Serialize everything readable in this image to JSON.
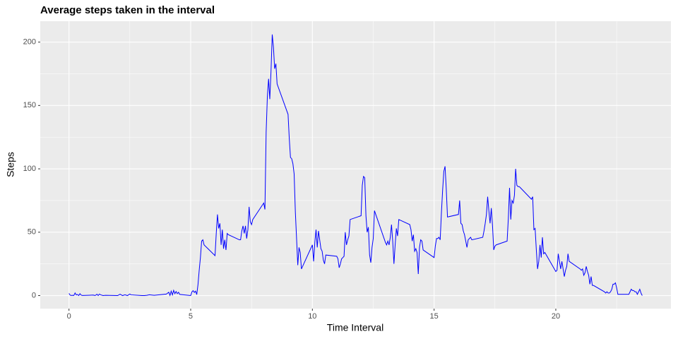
{
  "chart_data": {
    "type": "line",
    "title": "Average steps taken in the interval",
    "x_label": "Time Interval",
    "y_label": "Steps",
    "color": "#0000ff",
    "grid": true,
    "xlim": [
      -1.18,
      24.73
    ],
    "ylim": [
      -10.3,
      216.5
    ],
    "xticks": [
      0,
      5,
      10,
      15,
      20
    ],
    "yticks": [
      0,
      50,
      100,
      150,
      200
    ],
    "x_minor_ticks": [
      2.5,
      7.5,
      12.5,
      17.5,
      22.5
    ],
    "y_minor_ticks": [
      25,
      75,
      125,
      175
    ],
    "x": [
      0,
      0.05,
      0.1,
      0.15,
      0.2,
      0.25,
      0.3,
      0.35,
      0.4,
      0.45,
      0.5,
      0.55,
      1,
      1.05,
      1.1,
      1.15,
      1.2,
      1.25,
      1.3,
      1.4,
      1.5,
      2,
      2.1,
      2.2,
      2.3,
      2.4,
      2.5,
      2.55,
      3,
      3.1,
      3.2,
      3.3,
      3.4,
      3.5,
      4,
      4.1,
      4.15,
      4.2,
      4.25,
      4.3,
      4.35,
      4.4,
      4.45,
      4.5,
      4.55,
      5,
      5.05,
      5.1,
      5.15,
      5.2,
      5.25,
      5.3,
      5.35,
      5.4,
      5.45,
      5.5,
      5.55,
      6,
      6.05,
      6.1,
      6.15,
      6.2,
      6.25,
      6.3,
      6.35,
      6.4,
      6.45,
      6.5,
      6.55,
      7,
      7.05,
      7.1,
      7.15,
      7.2,
      7.25,
      7.3,
      7.35,
      7.4,
      7.45,
      7.5,
      7.55,
      8,
      8.05,
      8.1,
      8.15,
      8.2,
      8.25,
      8.3,
      8.35,
      8.4,
      8.45,
      8.5,
      8.55,
      9,
      9.05,
      9.1,
      9.15,
      9.2,
      9.25,
      9.3,
      9.35,
      9.4,
      9.45,
      9.5,
      9.55,
      10,
      10.05,
      10.1,
      10.15,
      10.2,
      10.25,
      10.3,
      10.35,
      10.4,
      10.45,
      10.5,
      10.55,
      11,
      11.05,
      11.1,
      11.15,
      11.2,
      11.25,
      11.3,
      11.35,
      11.4,
      11.45,
      11.5,
      11.55,
      12,
      12.05,
      12.1,
      12.15,
      12.2,
      12.25,
      12.3,
      12.35,
      12.4,
      12.45,
      12.5,
      12.55,
      13,
      13.05,
      13.1,
      13.15,
      13.2,
      13.25,
      13.3,
      13.35,
      13.4,
      13.45,
      13.5,
      13.55,
      14,
      14.05,
      14.1,
      14.15,
      14.2,
      14.25,
      14.3,
      14.35,
      14.4,
      14.45,
      14.5,
      14.55,
      15,
      15.05,
      15.1,
      15.15,
      15.2,
      15.25,
      15.3,
      15.35,
      15.4,
      15.45,
      15.5,
      15.55,
      16,
      16.05,
      16.1,
      16.15,
      16.2,
      16.25,
      16.3,
      16.35,
      16.4,
      16.45,
      16.5,
      16.55,
      17,
      17.05,
      17.1,
      17.15,
      17.2,
      17.25,
      17.3,
      17.35,
      17.4,
      17.45,
      17.5,
      17.55,
      18,
      18.05,
      18.1,
      18.15,
      18.2,
      18.25,
      18.3,
      18.35,
      18.4,
      18.45,
      18.5,
      18.55,
      19,
      19.05,
      19.1,
      19.15,
      19.2,
      19.25,
      19.3,
      19.35,
      19.4,
      19.45,
      19.5,
      19.55,
      20,
      20.05,
      20.1,
      20.15,
      20.2,
      20.25,
      20.3,
      20.35,
      20.4,
      20.45,
      20.5,
      20.55,
      21,
      21.05,
      21.1,
      21.15,
      21.2,
      21.25,
      21.3,
      21.35,
      21.4,
      21.45,
      21.5,
      21.55,
      22,
      22.05,
      22.1,
      22.15,
      22.2,
      22.25,
      22.3,
      22.35,
      22.4,
      22.45,
      22.5,
      22.55,
      23,
      23.05,
      23.1,
      23.15,
      23.2,
      23.25,
      23.3,
      23.35,
      23.4,
      23.45,
      23.5,
      23.55
    ],
    "values": [
      1.7,
      0.3,
      0.1,
      0.2,
      0.1,
      2.1,
      0.5,
      0.9,
      0,
      1.5,
      0.4,
      0.1,
      0.4,
      0.1,
      0.3,
      1.1,
      0,
      1.2,
      0.6,
      0,
      0.2,
      0,
      1.1,
      0,
      0.6,
      0,
      1.2,
      0.6,
      0,
      0,
      0.2,
      0.6,
      0.4,
      0.2,
      1.2,
      2.6,
      0.1,
      3.5,
      0.5,
      4.1,
      1.5,
      3.2,
      1.5,
      2.6,
      0.9,
      0,
      2.9,
      3.9,
      2.5,
      3.5,
      0.8,
      8.7,
      20,
      30,
      43,
      44,
      40,
      31.5,
      49,
      64,
      53,
      57,
      40,
      52,
      37,
      44,
      36,
      49,
      48,
      44,
      44,
      51,
      55,
      49,
      55,
      45,
      52,
      70,
      58,
      56,
      60,
      73,
      68,
      129,
      157,
      171,
      155,
      177,
      206,
      196,
      179,
      183,
      167,
      143,
      124,
      109,
      108,
      104,
      96,
      66,
      45,
      24,
      38,
      34,
      21,
      40,
      27,
      42,
      52,
      38,
      51,
      44,
      37,
      35,
      28,
      25,
      32,
      31,
      29,
      22,
      25,
      29,
      30,
      31,
      50,
      40,
      44,
      47,
      60,
      63,
      87,
      94,
      93,
      63,
      50,
      54,
      32,
      26,
      38,
      45,
      67,
      42,
      40,
      43,
      40,
      46,
      56,
      43,
      25,
      40,
      53,
      47,
      60,
      56,
      52,
      43,
      48,
      35,
      37,
      34,
      17,
      38,
      44,
      43,
      36,
      30,
      39,
      45,
      45,
      46,
      44,
      65,
      83,
      98,
      102,
      84,
      62,
      64,
      75,
      57,
      56,
      51,
      48,
      43,
      38,
      44,
      45,
      46,
      44,
      46,
      51,
      57,
      64,
      78,
      67,
      57,
      69,
      55,
      36,
      39,
      40,
      43,
      61,
      85,
      60,
      75,
      73,
      79,
      100,
      87,
      86,
      86,
      85,
      76,
      78,
      52,
      53,
      36,
      21,
      27,
      40,
      30,
      46,
      33,
      34,
      19,
      20,
      33,
      27,
      21,
      27,
      21,
      15,
      20,
      23,
      33,
      27,
      21,
      20,
      21,
      16,
      18,
      23,
      19,
      16,
      9,
      15,
      8,
      8,
      3,
      2,
      3,
      2,
      2,
      3,
      5,
      9,
      9,
      10,
      6,
      1,
      1,
      3,
      5,
      4,
      4,
      3,
      3,
      1,
      3,
      5,
      2,
      0
    ]
  }
}
